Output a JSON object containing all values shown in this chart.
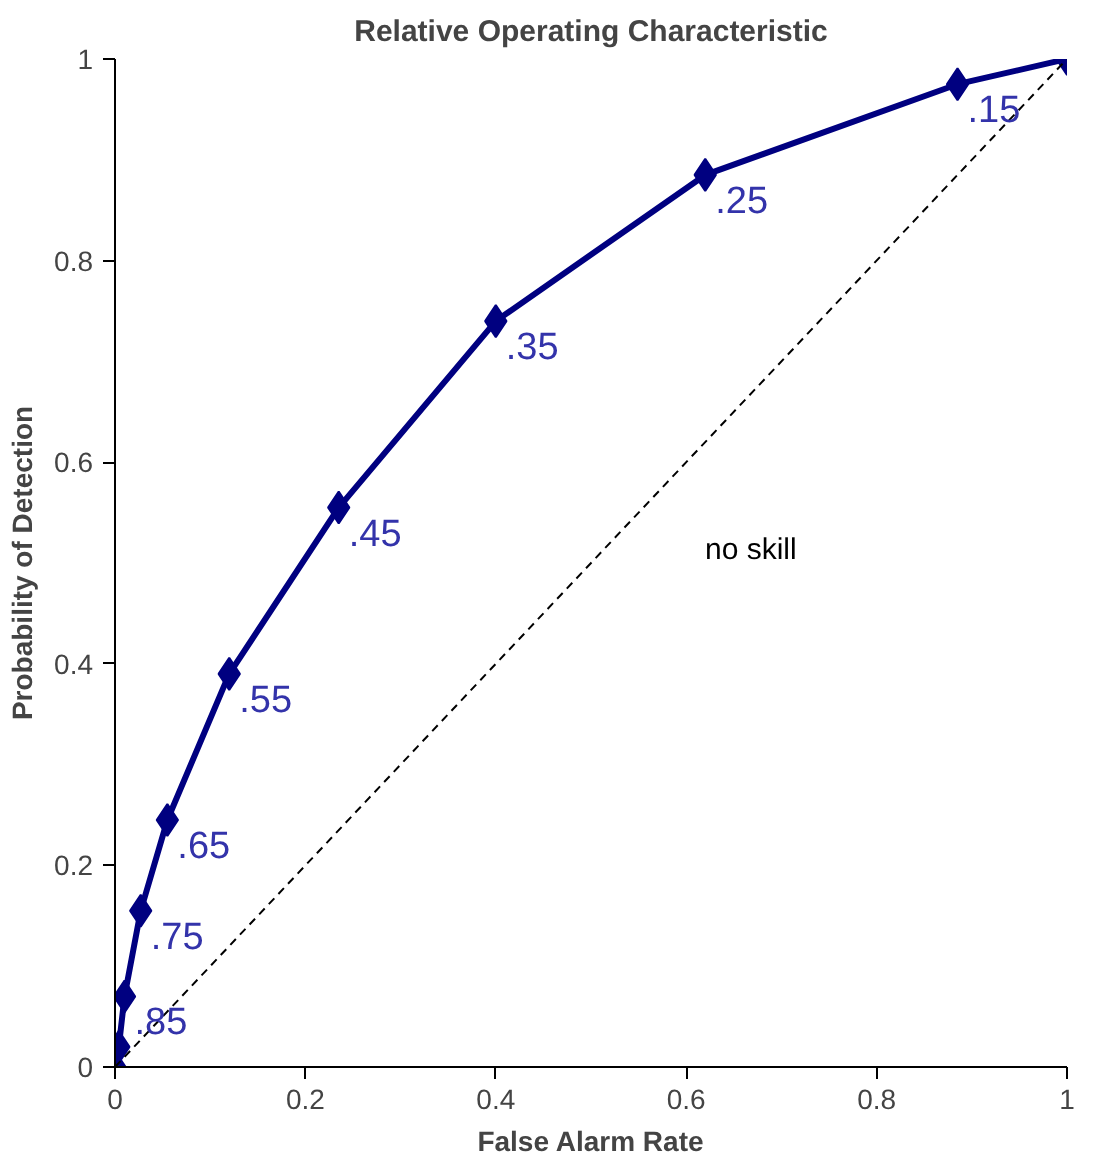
{
  "chart_data": {
    "type": "line",
    "title": "Relative Operating Characteristic",
    "xlabel": "False Alarm Rate",
    "ylabel": "Probability of Detection",
    "xlim": [
      0,
      1
    ],
    "ylim": [
      0,
      1
    ],
    "xticks": [
      0,
      0.2,
      0.4,
      0.6,
      0.8,
      1
    ],
    "yticks": [
      0,
      0.2,
      0.4,
      0.6,
      0.8,
      1
    ],
    "grid": false,
    "series": [
      {
        "color": "#000080",
        "marker": "diamond",
        "line_style": "solid",
        "x": [
          0,
          0.004,
          0.01,
          0.027,
          0.055,
          0.12,
          0.235,
          0.4,
          0.62,
          0.885,
          1
        ],
        "values": [
          0,
          0.02,
          0.07,
          0.155,
          0.245,
          0.39,
          0.555,
          0.74,
          0.885,
          0.975,
          1
        ]
      },
      {
        "color": "#000000",
        "marker": "none",
        "line_style": "dashed",
        "x": [
          0,
          1
        ],
        "values": [
          0,
          1
        ]
      }
    ],
    "annotations": [
      {
        "text": ".85",
        "x": 0.01,
        "y": 0.07
      },
      {
        "text": ".75",
        "x": 0.027,
        "y": 0.155
      },
      {
        "text": ".65",
        "x": 0.055,
        "y": 0.245
      },
      {
        "text": ".55",
        "x": 0.12,
        "y": 0.39
      },
      {
        "text": ".45",
        "x": 0.235,
        "y": 0.555
      },
      {
        "text": ".35",
        "x": 0.4,
        "y": 0.74
      },
      {
        "text": ".25",
        "x": 0.62,
        "y": 0.885
      },
      {
        "text": ".15",
        "x": 0.885,
        "y": 0.975
      },
      "no skill"
    ]
  }
}
